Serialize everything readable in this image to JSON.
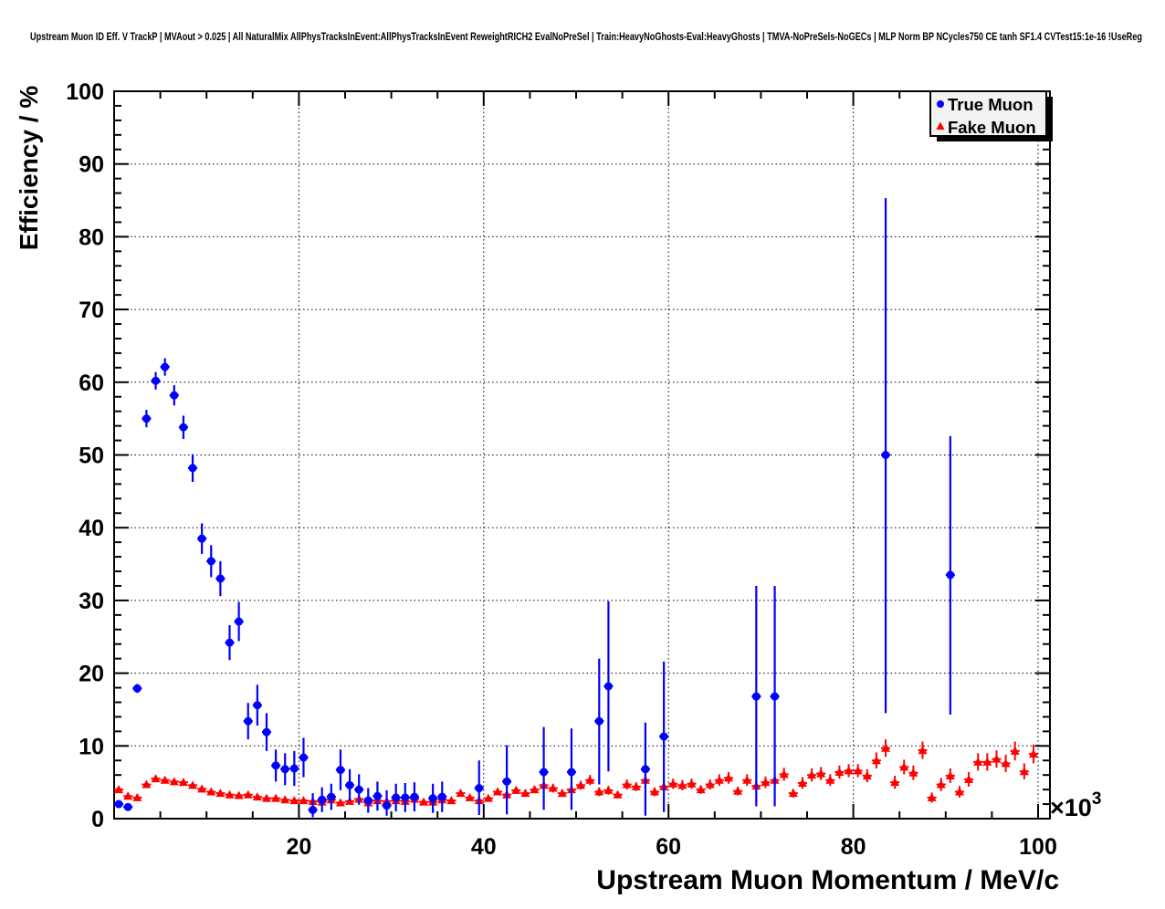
{
  "header": {
    "title": "Upstream Muon ID Eff. V TrackP | MVAout > 0.025 | All NaturalMix AllPhysTracksInEvent:AllPhysTracksInEvent ReweightRICH2 EvalNoPreSel | Train:HeavyNoGhosts-Eval:HeavyGhosts | TMVA-NoPreSels-NoGECs | MLP Norm BP NCycles750 CE tanh SF1.4 CVTest15:1e-16 !UseReg"
  },
  "axes": {
    "x": {
      "title": "Upstream Muon Momentum / MeV/c",
      "exponent_prefix": "×10",
      "exponent": "3",
      "ticks": [
        20,
        40,
        60,
        80,
        100
      ],
      "minor_step": 5,
      "range": [
        0,
        101.3
      ]
    },
    "y": {
      "title": "Efficiency / %",
      "ticks": [
        0,
        10,
        20,
        30,
        40,
        50,
        60,
        70,
        80,
        90,
        100
      ],
      "minor_step": 2,
      "range": [
        0,
        100
      ]
    }
  },
  "legend": {
    "entries": [
      {
        "label": "True Muon",
        "marker": "circle",
        "color": "#0000ff"
      },
      {
        "label": "Fake Muon",
        "marker": "triangle-up",
        "color": "#ff0000"
      }
    ]
  },
  "colors": {
    "true_muon": "#0000ff",
    "fake_muon": "#ff0000",
    "frame": "#000000",
    "grid": "#000000",
    "legend_fill": "#f2f2f2",
    "legend_shadow": "#000000",
    "background": "#ffffff"
  },
  "chart_data": {
    "type": "scatter",
    "title": "Upstream Muon ID Eff. V TrackP",
    "xlabel": "Upstream Muon Momentum / MeV/c",
    "ylabel": "Efficiency / %",
    "x_unit_multiplier": "10^3",
    "xlim": [
      0,
      101.3
    ],
    "ylim": [
      0,
      100
    ],
    "grid": true,
    "legend_position": "top-right",
    "point_format": [
      "x_momentum_10^3_MeV",
      "efficiency_pct",
      "err_low_pct",
      "err_high_pct"
    ],
    "series": [
      {
        "name": "True Muon",
        "color": "#0000ff",
        "marker": "circle",
        "points": [
          [
            0.5,
            2.0,
            1.6,
            2.4
          ],
          [
            1.5,
            1.6,
            1.3,
            1.9
          ],
          [
            2.5,
            17.9,
            17.3,
            18.5
          ],
          [
            3.5,
            55.0,
            53.8,
            56.2
          ],
          [
            4.5,
            60.2,
            59.0,
            61.4
          ],
          [
            5.5,
            62.1,
            60.9,
            63.3
          ],
          [
            6.5,
            58.2,
            56.8,
            59.6
          ],
          [
            7.5,
            53.8,
            52.2,
            55.4
          ],
          [
            8.5,
            48.2,
            46.3,
            50.1
          ],
          [
            9.5,
            38.5,
            36.4,
            40.6
          ],
          [
            10.5,
            35.4,
            33.2,
            37.6
          ],
          [
            11.5,
            33.0,
            30.6,
            35.4
          ],
          [
            12.5,
            24.2,
            21.8,
            26.6
          ],
          [
            13.5,
            27.1,
            24.4,
            29.8
          ],
          [
            14.5,
            13.4,
            10.9,
            15.9
          ],
          [
            15.5,
            15.6,
            12.8,
            18.4
          ],
          [
            16.5,
            11.9,
            9.3,
            14.5
          ],
          [
            17.5,
            7.3,
            5.1,
            9.5
          ],
          [
            18.5,
            6.8,
            4.6,
            9.0
          ],
          [
            19.5,
            6.9,
            4.5,
            9.3
          ],
          [
            20.5,
            8.4,
            5.7,
            11.1
          ],
          [
            21.5,
            1.2,
            0.2,
            3.5
          ],
          [
            22.5,
            2.6,
            0.9,
            4.3
          ],
          [
            23.5,
            3.0,
            1.2,
            4.8
          ],
          [
            24.5,
            6.7,
            3.9,
            9.5
          ],
          [
            25.5,
            4.6,
            2.4,
            6.8
          ],
          [
            26.5,
            4.0,
            1.9,
            6.1
          ],
          [
            27.5,
            2.5,
            0.8,
            4.2
          ],
          [
            28.5,
            3.1,
            1.1,
            5.1
          ],
          [
            29.5,
            1.8,
            0.4,
            3.9
          ],
          [
            30.5,
            2.9,
            1.0,
            4.8
          ],
          [
            31.5,
            2.9,
            0.9,
            4.9
          ],
          [
            32.5,
            3.0,
            1.0,
            5.0
          ],
          [
            34.5,
            2.8,
            0.8,
            4.8
          ],
          [
            35.5,
            3.0,
            0.9,
            5.1
          ],
          [
            39.5,
            4.2,
            0.5,
            8.0
          ],
          [
            42.5,
            5.1,
            0.6,
            10.1
          ],
          [
            46.5,
            6.4,
            1.2,
            12.6
          ],
          [
            49.5,
            6.4,
            1.2,
            12.4
          ],
          [
            52.5,
            13.4,
            4.7,
            22.0
          ],
          [
            53.5,
            18.2,
            6.5,
            29.9
          ],
          [
            57.5,
            6.8,
            0.4,
            13.2
          ],
          [
            59.5,
            11.3,
            0.9,
            21.6
          ],
          [
            69.5,
            16.8,
            1.7,
            32.0
          ],
          [
            71.5,
            16.8,
            1.7,
            32.0
          ],
          [
            83.5,
            50.0,
            14.5,
            85.3
          ],
          [
            90.5,
            33.5,
            14.3,
            52.6
          ]
        ]
      },
      {
        "name": "Fake Muon",
        "color": "#ff0000",
        "marker": "triangle-up",
        "points": [
          [
            0.5,
            4.0,
            3.7,
            4.3
          ],
          [
            1.5,
            3.1,
            2.9,
            3.3
          ],
          [
            2.5,
            2.9,
            2.7,
            3.1
          ],
          [
            3.5,
            4.7,
            4.4,
            5.0
          ],
          [
            4.5,
            5.5,
            5.2,
            5.8
          ],
          [
            5.5,
            5.3,
            5.0,
            5.6
          ],
          [
            6.5,
            5.1,
            4.8,
            5.4
          ],
          [
            7.5,
            5.0,
            4.7,
            5.3
          ],
          [
            8.5,
            4.6,
            4.3,
            4.9
          ],
          [
            9.5,
            4.1,
            3.8,
            4.4
          ],
          [
            10.5,
            3.7,
            3.4,
            4.0
          ],
          [
            11.5,
            3.5,
            3.2,
            3.8
          ],
          [
            12.5,
            3.3,
            3.0,
            3.6
          ],
          [
            13.5,
            3.2,
            2.9,
            3.5
          ],
          [
            14.5,
            3.3,
            3.0,
            3.6
          ],
          [
            15.5,
            3.0,
            2.7,
            3.3
          ],
          [
            16.5,
            2.8,
            2.5,
            3.1
          ],
          [
            17.5,
            2.8,
            2.5,
            3.1
          ],
          [
            18.5,
            2.6,
            2.3,
            2.9
          ],
          [
            19.5,
            2.5,
            2.2,
            2.8
          ],
          [
            20.5,
            2.5,
            2.2,
            2.8
          ],
          [
            21.5,
            2.4,
            2.1,
            2.7
          ],
          [
            22.5,
            2.3,
            2.0,
            2.6
          ],
          [
            23.5,
            2.6,
            2.3,
            2.9
          ],
          [
            24.5,
            2.2,
            1.9,
            2.5
          ],
          [
            25.5,
            2.4,
            2.1,
            2.7
          ],
          [
            26.5,
            2.7,
            2.4,
            3.0
          ],
          [
            27.5,
            2.2,
            1.9,
            2.5
          ],
          [
            28.5,
            2.5,
            2.2,
            2.8
          ],
          [
            29.5,
            2.4,
            2.1,
            2.7
          ],
          [
            30.5,
            2.5,
            2.2,
            2.8
          ],
          [
            31.5,
            2.4,
            2.1,
            2.7
          ],
          [
            32.5,
            2.7,
            2.3,
            3.1
          ],
          [
            33.5,
            2.3,
            2.0,
            2.6
          ],
          [
            34.5,
            2.3,
            2.0,
            2.6
          ],
          [
            35.5,
            2.6,
            2.2,
            3.0
          ],
          [
            36.5,
            2.5,
            2.1,
            2.9
          ],
          [
            37.5,
            3.5,
            3.0,
            4.0
          ],
          [
            38.5,
            2.9,
            2.5,
            3.3
          ],
          [
            39.5,
            2.5,
            2.1,
            2.9
          ],
          [
            40.5,
            2.8,
            2.4,
            3.2
          ],
          [
            41.5,
            3.7,
            3.2,
            4.2
          ],
          [
            42.5,
            3.3,
            2.8,
            3.8
          ],
          [
            43.5,
            3.9,
            3.4,
            4.4
          ],
          [
            44.5,
            3.5,
            3.0,
            4.0
          ],
          [
            45.5,
            4.0,
            3.5,
            4.5
          ],
          [
            46.5,
            4.6,
            4.0,
            5.2
          ],
          [
            47.5,
            4.2,
            3.6,
            4.8
          ],
          [
            48.5,
            3.5,
            3.0,
            4.0
          ],
          [
            49.5,
            4.0,
            3.4,
            4.6
          ],
          [
            50.5,
            4.6,
            4.0,
            5.2
          ],
          [
            51.5,
            5.3,
            4.6,
            6.0
          ],
          [
            52.5,
            3.7,
            3.1,
            4.3
          ],
          [
            53.5,
            3.9,
            3.3,
            4.5
          ],
          [
            54.5,
            3.3,
            2.8,
            3.8
          ],
          [
            55.5,
            4.7,
            4.0,
            5.4
          ],
          [
            56.5,
            4.4,
            3.8,
            5.0
          ],
          [
            57.5,
            5.3,
            4.6,
            6.0
          ],
          [
            58.5,
            3.7,
            3.1,
            4.3
          ],
          [
            59.5,
            4.4,
            3.8,
            5.0
          ],
          [
            60.5,
            4.8,
            4.1,
            5.5
          ],
          [
            61.5,
            4.6,
            3.9,
            5.3
          ],
          [
            62.5,
            4.8,
            4.1,
            5.5
          ],
          [
            63.5,
            4.0,
            3.4,
            4.6
          ],
          [
            64.5,
            4.7,
            4.0,
            5.4
          ],
          [
            65.5,
            5.3,
            4.5,
            6.1
          ],
          [
            66.5,
            5.6,
            4.8,
            6.4
          ],
          [
            67.5,
            3.8,
            3.2,
            4.4
          ],
          [
            68.5,
            5.3,
            4.5,
            6.1
          ],
          [
            69.5,
            4.5,
            3.8,
            5.2
          ],
          [
            70.5,
            5.0,
            4.2,
            5.8
          ],
          [
            71.5,
            5.3,
            4.5,
            6.1
          ],
          [
            72.5,
            6.1,
            5.2,
            7.0
          ],
          [
            73.5,
            3.5,
            2.9,
            4.1
          ],
          [
            74.5,
            4.9,
            4.1,
            5.7
          ],
          [
            75.5,
            6.0,
            5.1,
            6.9
          ],
          [
            76.5,
            6.2,
            5.3,
            7.1
          ],
          [
            77.5,
            5.3,
            4.5,
            6.1
          ],
          [
            78.5,
            6.4,
            5.5,
            7.3
          ],
          [
            79.5,
            6.6,
            5.7,
            7.5
          ],
          [
            80.5,
            6.6,
            5.7,
            7.5
          ],
          [
            81.5,
            5.9,
            5.0,
            6.8
          ],
          [
            82.5,
            8.0,
            6.9,
            9.1
          ],
          [
            83.5,
            9.7,
            8.5,
            10.9
          ],
          [
            84.5,
            5.0,
            4.1,
            5.9
          ],
          [
            85.5,
            7.1,
            6.1,
            8.1
          ],
          [
            86.5,
            6.3,
            5.3,
            7.3
          ],
          [
            87.5,
            9.4,
            8.2,
            10.6
          ],
          [
            88.5,
            2.9,
            2.2,
            3.6
          ],
          [
            89.5,
            4.7,
            3.8,
            5.6
          ],
          [
            90.5,
            5.9,
            4.9,
            6.9
          ],
          [
            91.5,
            3.7,
            2.9,
            4.5
          ],
          [
            92.5,
            5.4,
            4.4,
            6.4
          ],
          [
            93.5,
            7.8,
            6.6,
            9.0
          ],
          [
            94.5,
            7.8,
            6.6,
            9.0
          ],
          [
            95.5,
            8.2,
            7.0,
            9.4
          ],
          [
            96.5,
            7.6,
            6.4,
            8.8
          ],
          [
            97.5,
            9.3,
            8.0,
            10.6
          ],
          [
            98.5,
            6.5,
            5.4,
            7.6
          ],
          [
            99.5,
            8.9,
            7.6,
            10.2
          ]
        ]
      }
    ]
  }
}
